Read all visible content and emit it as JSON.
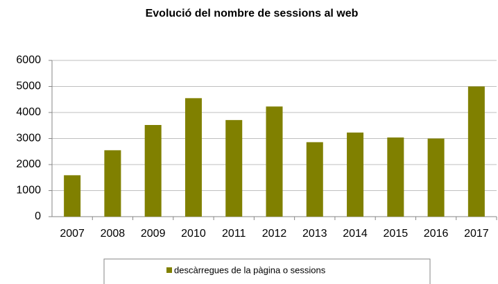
{
  "chart_data": {
    "type": "bar",
    "title": "Evolució del nombre de sessions al web",
    "categories": [
      "2007",
      "2008",
      "2009",
      "2010",
      "2011",
      "2012",
      "2013",
      "2014",
      "2015",
      "2016",
      "2017"
    ],
    "series": [
      {
        "name": "descàrregues de la pàgina o sessions",
        "color": "#808000",
        "values": [
          1590,
          2550,
          3520,
          4550,
          3710,
          4230,
          2860,
          3230,
          3040,
          3000,
          5000
        ]
      }
    ],
    "ylim": [
      0,
      6000
    ],
    "yticks": [
      0,
      1000,
      2000,
      3000,
      4000,
      5000,
      6000
    ],
    "grid": true,
    "legend": "bottom"
  }
}
